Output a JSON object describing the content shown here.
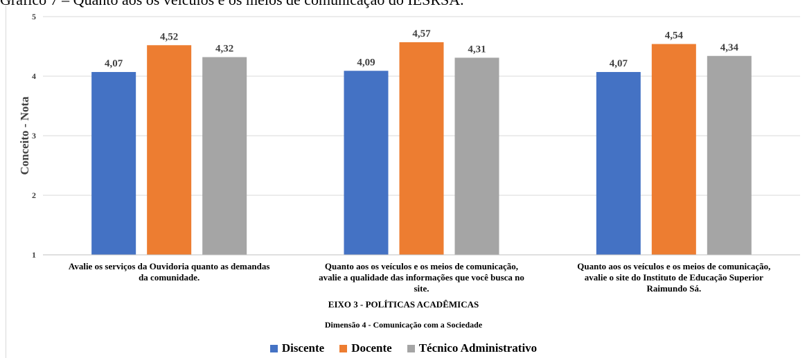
{
  "caption": "Gráfico 7 – Quanto aos os veículos e os meios de comunicação do IESRSA.",
  "chart_data": {
    "type": "bar",
    "title": "",
    "ylabel": "Conceito - Nota",
    "ylim": [
      1,
      5
    ],
    "yticks": [
      "1",
      "2",
      "3",
      "4",
      "5"
    ],
    "categories": [
      "Avalie os serviços da Ouvidoria quanto as demandas da comunidade.",
      "Quanto aos os veículos e os meios de comunicação, avalie a qualidade das informações que você busca no site.",
      "Quanto aos os veículos e os meios de comunicação, avalie o site do Instituto de Educação Superior Raimundo Sá."
    ],
    "category_lines": [
      [
        "Avalie os serviços da Ouvidoria quanto as demandas",
        "da comunidade."
      ],
      [
        "Quanto aos os veículos e os meios de comunicação,",
        "avalie a qualidade das informações que você busca no",
        "site."
      ],
      [
        "Quanto aos os veículos e os meios de comunicação,",
        "avalie o site do Instituto de Educação Superior",
        "Raimundo Sá."
      ]
    ],
    "group_titles": [
      "EIXO 3 - POLÍTICAS ACADÊMICAS",
      "Dimensão 4 - Comunicação com a Sociedade"
    ],
    "series": [
      {
        "name": "Discente",
        "color": "#4472c4",
        "values": [
          4.07,
          4.09,
          4.07
        ],
        "labels": [
          "4,07",
          "4,09",
          "4,07"
        ]
      },
      {
        "name": "Docente",
        "color": "#ed7d31",
        "values": [
          4.52,
          4.57,
          4.54
        ],
        "labels": [
          "4,52",
          "4,57",
          "4,54"
        ]
      },
      {
        "name": "Técnico Administrativo",
        "color": "#a5a5a5",
        "values": [
          4.32,
          4.31,
          4.34
        ],
        "labels": [
          "4,32",
          "4,31",
          "4,34"
        ]
      }
    ],
    "grid": true,
    "legend": "bottom"
  }
}
